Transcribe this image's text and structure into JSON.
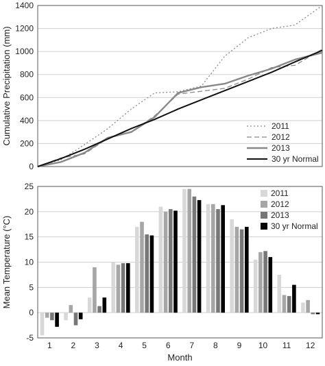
{
  "chart_data": [
    {
      "type": "line",
      "title": "",
      "xlabel": "",
      "ylabel": "Cumulative Precipitation (mm)",
      "ylim": [
        0,
        1400
      ],
      "yticks": [
        0,
        200,
        400,
        600,
        800,
        1000,
        1200,
        1400
      ],
      "xlim": [
        0,
        365
      ],
      "grid": true,
      "legend": "bottom-right",
      "x": [
        0,
        30,
        60,
        90,
        120,
        150,
        180,
        210,
        240,
        270,
        300,
        330,
        365
      ],
      "series": [
        {
          "name": "2011",
          "style": "dotted",
          "color": "#888888",
          "values": [
            0,
            60,
            190,
            330,
            500,
            640,
            650,
            700,
            960,
            1120,
            1200,
            1230,
            1400
          ]
        },
        {
          "name": "2012",
          "style": "dashed",
          "color": "#888888",
          "values": [
            0,
            75,
            110,
            245,
            300,
            440,
            630,
            655,
            680,
            760,
            860,
            880,
            1020
          ]
        },
        {
          "name": "2013",
          "style": "solid",
          "color": "#888888",
          "values": [
            0,
            40,
            120,
            250,
            300,
            430,
            640,
            690,
            720,
            790,
            850,
            930,
            990
          ]
        },
        {
          "name": "30 yr Normal",
          "style": "solid",
          "color": "#111111",
          "values": [
            0,
            70,
            150,
            240,
            330,
            410,
            500,
            580,
            660,
            740,
            820,
            910,
            1010
          ]
        }
      ]
    },
    {
      "type": "bar",
      "title": "",
      "xlabel": "Month",
      "ylabel": "Mean Temperature (°C)",
      "ylim": [
        -5,
        25
      ],
      "yticks": [
        -5,
        0,
        5,
        10,
        15,
        20,
        25
      ],
      "grid": true,
      "legend": "top-right",
      "categories": [
        "1",
        "2",
        "3",
        "4",
        "5",
        "6",
        "7",
        "8",
        "9",
        "10",
        "11",
        "12"
      ],
      "series": [
        {
          "name": "2011",
          "color": "#d8d8d8",
          "values": [
            -4.5,
            -1.5,
            3.0,
            10.0,
            17.0,
            21.0,
            24.5,
            21.5,
            18.5,
            10.5,
            7.5,
            2.0
          ]
        },
        {
          "name": "2012",
          "color": "#a6a6a6",
          "values": [
            -1.0,
            1.5,
            9.0,
            9.5,
            18.0,
            20.0,
            24.5,
            21.5,
            17.0,
            12.0,
            3.5,
            2.5
          ]
        },
        {
          "name": "2013",
          "color": "#777777",
          "values": [
            -1.5,
            -2.5,
            1.3,
            9.8,
            15.5,
            20.5,
            23.0,
            20.5,
            16.5,
            12.2,
            3.3,
            -0.3
          ]
        },
        {
          "name": "30 yr Normal",
          "color": "#000000",
          "values": [
            -2.8,
            -1.3,
            3.0,
            9.8,
            15.3,
            20.2,
            22.3,
            21.3,
            17.0,
            11.0,
            5.5,
            -0.3
          ]
        }
      ]
    }
  ]
}
